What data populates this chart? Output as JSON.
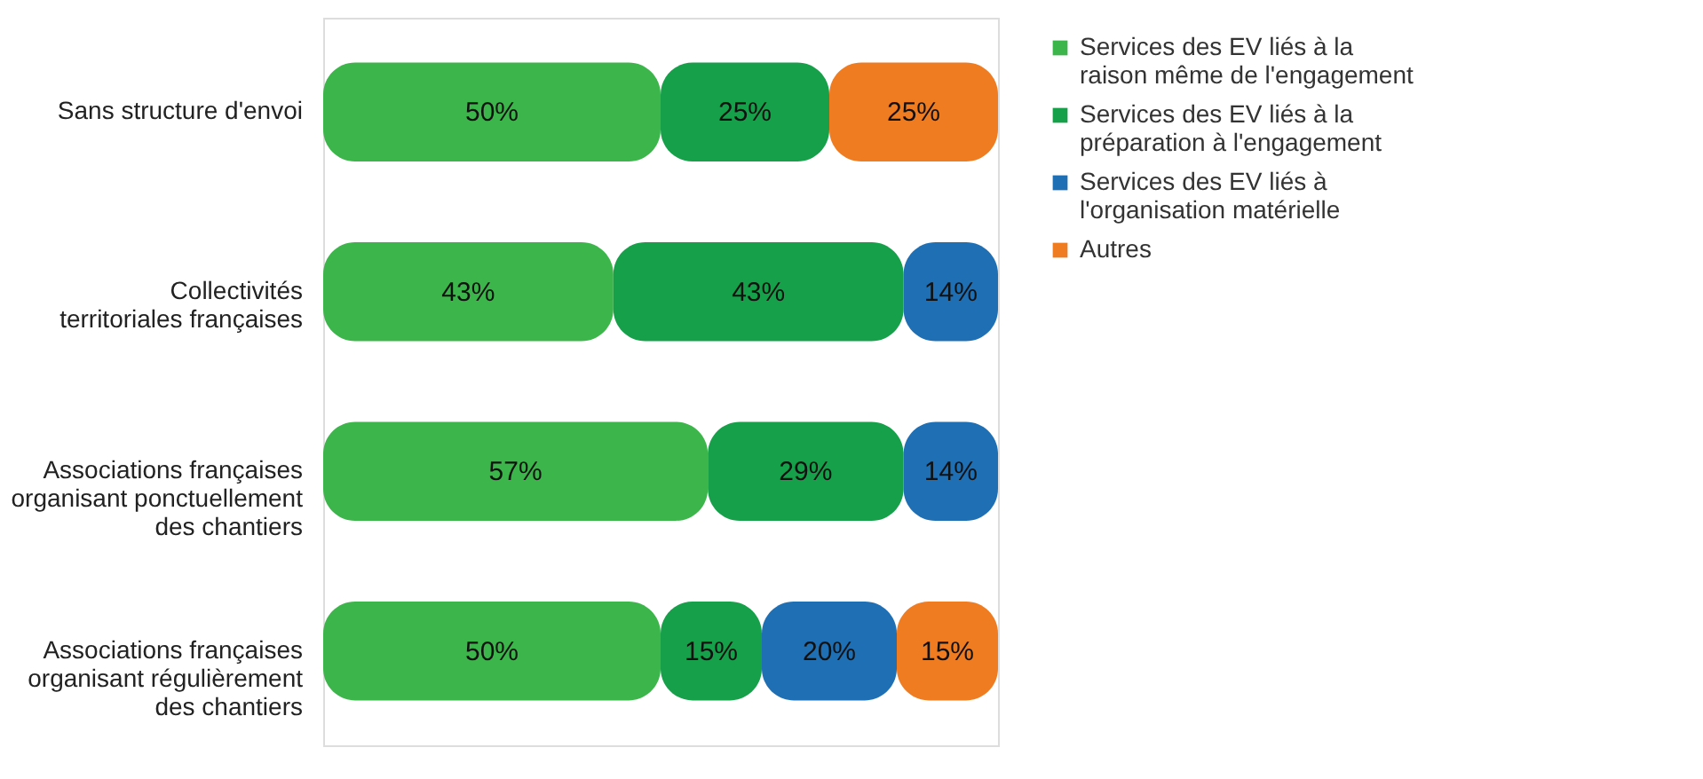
{
  "chart_data": {
    "type": "bar",
    "orientation": "horizontal",
    "stacked": true,
    "tick_labels": "y",
    "legend": "right",
    "categories": [
      "Sans structure d'envoi",
      "Collectivités territoriales françaises",
      "Associations françaises organisant ponctuellement des chantiers",
      "Associations françaises organisant régulièrement des chantiers"
    ],
    "series": [
      {
        "name": "Services des EV liés à la raison même de l'engagement",
        "color": "#3cb54a",
        "values": [
          50,
          43,
          57,
          50
        ],
        "value_labels": [
          "50%",
          "43%",
          "57%",
          "50%"
        ]
      },
      {
        "name": "Services des EV liés à la préparation à l'engagement",
        "color": "#16a04a",
        "values": [
          25,
          43,
          29,
          15
        ],
        "value_labels": [
          "25%",
          "43%",
          "29%",
          "15%"
        ]
      },
      {
        "name": "Services des EV liés à l'organisation matérielle",
        "color": "#1f6fb5",
        "values": [
          null,
          14,
          14,
          20
        ],
        "value_labels": [
          null,
          "14%",
          "14%",
          "20%"
        ]
      },
      {
        "name": "Autres",
        "color": "#f07c22",
        "values": [
          25,
          null,
          null,
          15
        ],
        "value_labels": [
          "25%",
          null,
          null,
          "15%"
        ]
      }
    ]
  }
}
